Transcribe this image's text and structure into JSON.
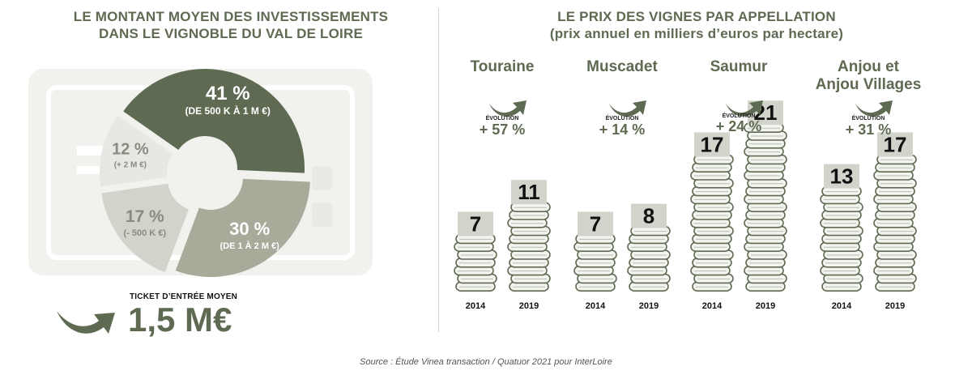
{
  "left_title": {
    "line1": "LE MONTANT MOYEN DES INVESTISSEMENTS",
    "line2": "DANS LE VIGNOBLE DU VAL DE LOIRE"
  },
  "right_title": {
    "line1": "LE PRIX DES VIGNES PAR APPELLATION",
    "line2": "(prix annuel en milliers d’euros par hectare)"
  },
  "ticket": {
    "label": "TICKET D’ENTRÉE MOYEN",
    "value": "1,5 M€"
  },
  "source": "Source : Étude Vinea transaction / Quatuor 2021 pour InterLoire",
  "chart_data": [
    {
      "type": "pie",
      "slices": [
        {
          "pct_label": "41 %",
          "range_label": "(DE 500 K À 1 M €)",
          "value": 41,
          "color": "#5f6a52"
        },
        {
          "pct_label": "30 %",
          "range_label": "(DE 1 À 2 M €)",
          "value": 30,
          "color": "#a6ab9a"
        },
        {
          "pct_label": "17 %",
          "range_label": "(- 500 K €)",
          "value": 17,
          "color": "#d1d4ca"
        },
        {
          "pct_label": "12 %",
          "range_label": "(+ 2 M €)",
          "value": 12,
          "color": "#e7e8e3"
        }
      ]
    },
    {
      "type": "bar",
      "categories": [
        "2014",
        "2019"
      ],
      "groups": [
        {
          "name": "Touraine",
          "evolution_label": "ÉVOLUTION",
          "evolution": "+ 57 %",
          "values": [
            7,
            11
          ]
        },
        {
          "name": "Muscadet",
          "evolution_label": "ÉVOLUTION",
          "evolution": "+ 14 %",
          "values": [
            7,
            8
          ]
        },
        {
          "name": "Saumur",
          "evolution_label": "ÉVOLUTION",
          "evolution": "+ 24 %",
          "values": [
            17,
            21
          ]
        },
        {
          "name": "Anjou et\nAnjou Villages",
          "evolution_label": "ÉVOLUTION",
          "evolution": "+ 31 %",
          "values": [
            13,
            17
          ]
        }
      ]
    }
  ]
}
